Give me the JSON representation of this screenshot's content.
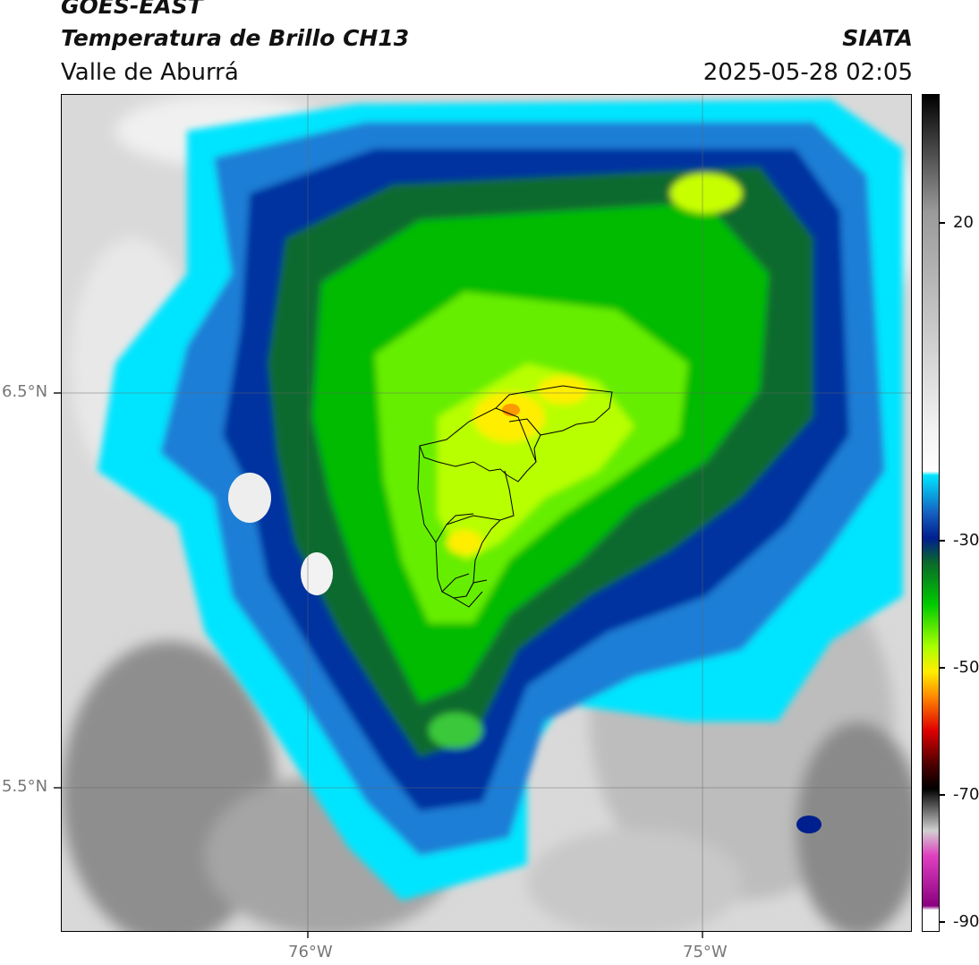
{
  "header": {
    "satellite": "GOES-EAST",
    "product": "Temperatura de Brillo CH13",
    "region": "Valle de Aburrá",
    "agency": "SIATA",
    "timestamp": "2025-05-28 02:05"
  },
  "map": {
    "lat_labels": [
      "6.5°N",
      "5.5°N"
    ],
    "lon_labels": [
      "76°W",
      "75°W"
    ]
  },
  "colorbar": {
    "labels": [
      "20",
      "-30",
      "-50",
      "-70",
      "-90"
    ],
    "colors": {
      "warm_gray": "#9a9a9a",
      "light_gray": "#f2f2f2",
      "cyan": "#00e5ff",
      "blue": "#1560c0",
      "navy": "#001f8f",
      "dark_green": "#0a6a2a",
      "green": "#00cc00",
      "lime": "#aaff00",
      "yellow": "#ffee00",
      "orange": "#ff8800",
      "red": "#e00000",
      "dark_red": "#500000",
      "black": "#000000",
      "magenta": "#e040c0",
      "purple": "#8a0080"
    }
  }
}
